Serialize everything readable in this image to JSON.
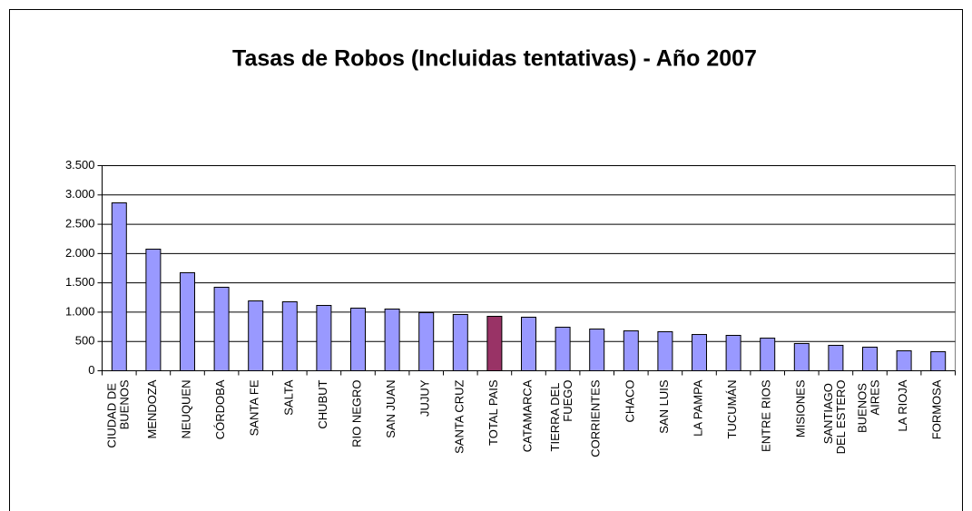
{
  "chart_data": {
    "type": "bar",
    "title": "Tasas de Robos (Incluidas tentativas) - Año 2007",
    "categories": [
      "CIUDAD DE BUENOS",
      "MENDOZA",
      "NEUQUEN",
      "CÓRDOBA",
      "SANTA FE",
      "SALTA",
      "CHUBUT",
      "RIO NEGRO",
      "SAN JUAN",
      "JUJUY",
      "SANTA CRUZ",
      "TOTAL PAIS",
      "CATAMARCA",
      "TIERRA DEL FUEGO",
      "CORRIENTES",
      "CHACO",
      "SAN LUIS",
      "LA PAMPA",
      "TUCUMÁN",
      "ENTRE RIOS",
      "MISIONES",
      "SANTIAGO DEL ESTERO",
      "BUENOS AIRES",
      "LA RIOJA",
      "FORMOSA"
    ],
    "values": [
      2865,
      2075,
      1673,
      1425,
      1192,
      1177,
      1115,
      1069,
      1053,
      991,
      960,
      929,
      914,
      743,
      712,
      681,
      666,
      619,
      604,
      557,
      465,
      434,
      403,
      341,
      325
    ],
    "colors": [
      "#9999ff",
      "#9999ff",
      "#9999ff",
      "#9999ff",
      "#9999ff",
      "#9999ff",
      "#9999ff",
      "#9999ff",
      "#9999ff",
      "#9999ff",
      "#9999ff",
      "#993366",
      "#9999ff",
      "#9999ff",
      "#9999ff",
      "#9999ff",
      "#9999ff",
      "#9999ff",
      "#9999ff",
      "#9999ff",
      "#9999ff",
      "#9999ff",
      "#9999ff",
      "#9999ff",
      "#9999ff"
    ],
    "ylim": [
      0,
      3500
    ],
    "yticks": [
      0,
      {
        "value": 500,
        "label": "500"
      },
      {
        "value": 1000,
        "label": "1.000"
      },
      {
        "value": 1500,
        "label": "1.500"
      },
      {
        "value": 2000,
        "label": "2.000"
      },
      {
        "value": 2500,
        "label": "2.500"
      },
      {
        "value": 3000,
        "label": "3.000"
      },
      {
        "value": 3500,
        "label": "3.500"
      }
    ],
    "grid": true
  }
}
